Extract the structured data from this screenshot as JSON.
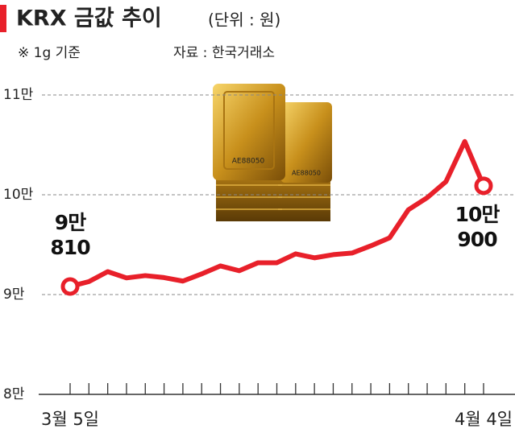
{
  "chart_data": {
    "type": "line",
    "title": "KRX 금값 추이",
    "unit": "(단위 : 원)",
    "subtitle": "※ 1g 기준",
    "source": "자료 : 한국거래소",
    "categories": [
      "3월 5일",
      null,
      null,
      null,
      null,
      null,
      null,
      null,
      null,
      null,
      null,
      null,
      null,
      null,
      null,
      null,
      null,
      null,
      null,
      null,
      null,
      null,
      "4월 4일"
    ],
    "series": [
      {
        "color": "#e8202a",
        "values": [
          90810,
          91300,
          92300,
          91670,
          91900,
          91700,
          91350,
          92070,
          92870,
          92390,
          93190,
          93190,
          94080,
          93680,
          94000,
          94160,
          94880,
          95690,
          98500,
          99710,
          101320,
          105340,
          100900
        ],
        "value_labels": [
          "9만\n810",
          null,
          null,
          null,
          null,
          null,
          null,
          null,
          null,
          null,
          null,
          null,
          null,
          null,
          null,
          null,
          null,
          null,
          null,
          null,
          null,
          null,
          "10만\n900"
        ]
      }
    ],
    "ylim": [
      80000,
      110000
    ],
    "yticks": [
      {
        "value": 80000,
        "label": "8만"
      },
      {
        "value": 90000,
        "label": "9만"
      },
      {
        "value": 100000,
        "label": "10만"
      },
      {
        "value": 110000,
        "label": "11만"
      }
    ],
    "grid": true
  }
}
